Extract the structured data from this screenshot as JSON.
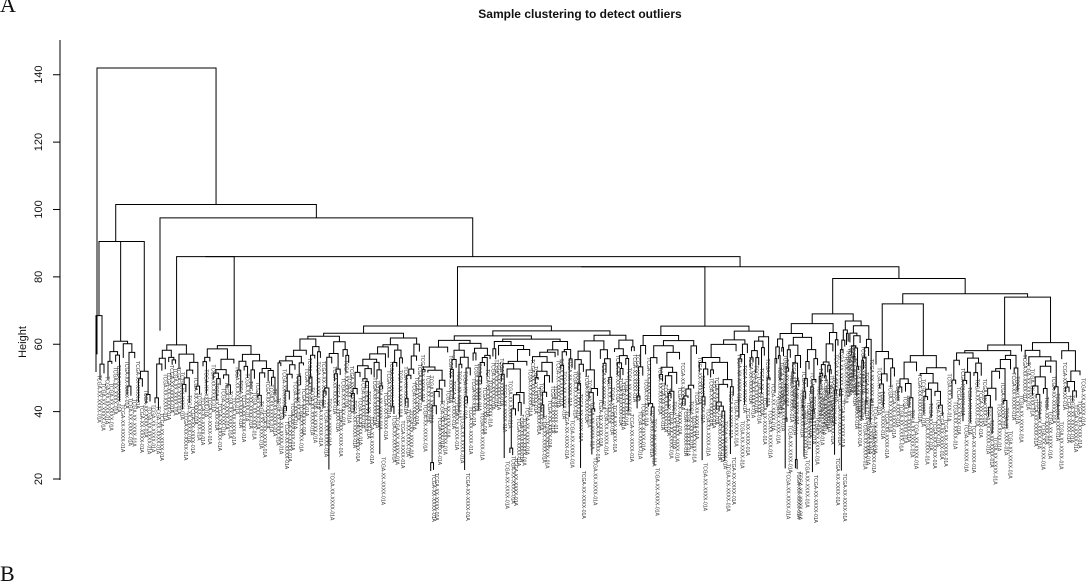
{
  "figure": {
    "panel_a": "A",
    "panel_b": "B"
  },
  "chart_data": {
    "type": "dendrogram",
    "title": "Sample clustering to detect outliers",
    "xlabel": "",
    "ylabel": "Height",
    "ylim": [
      20,
      145
    ],
    "yticks": [
      20,
      40,
      60,
      80,
      100,
      120,
      140
    ],
    "leaf_label_sample": "TCGA-XX-XXXX-01A",
    "main_merges": [
      {
        "height": 142,
        "note": "root"
      },
      {
        "height": 101.5
      },
      {
        "height": 97.5
      },
      {
        "height": 90.5
      },
      {
        "height": 86
      },
      {
        "height": 83
      },
      {
        "height": 79.5
      },
      {
        "height": 75
      }
    ]
  }
}
